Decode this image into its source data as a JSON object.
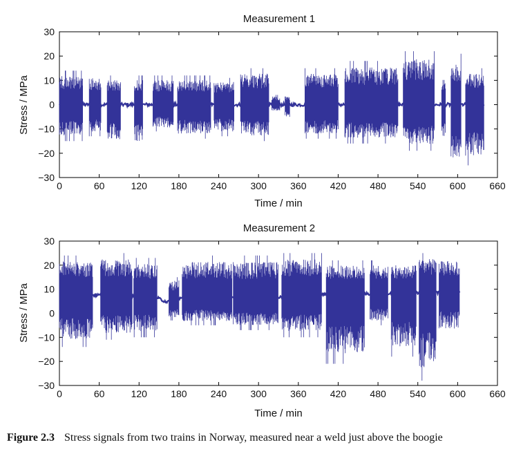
{
  "caption": {
    "label": "Figure 2.3",
    "text": "Stress signals from two trains in Norway, measured near a weld just above the boogie"
  },
  "colors": {
    "signal": "#333399",
    "axes": "#000000"
  },
  "chart_data": [
    {
      "type": "line",
      "title": "Measurement 1",
      "xlabel": "Time / min",
      "ylabel": "Stress / MPa",
      "xlim": [
        0,
        660
      ],
      "ylim": [
        -30,
        30
      ],
      "xticks": [
        0,
        60,
        120,
        180,
        240,
        300,
        360,
        420,
        480,
        540,
        600,
        660
      ],
      "yticks": [
        -30,
        -20,
        -10,
        0,
        10,
        20,
        30
      ],
      "baseline": 0,
      "active_segments": [
        {
          "start": 0,
          "end": 35,
          "min": -15,
          "max": 14
        },
        {
          "start": 45,
          "end": 63,
          "min": -13,
          "max": 13
        },
        {
          "start": 72,
          "end": 92,
          "min": -17,
          "max": 12
        },
        {
          "start": 113,
          "end": 126,
          "min": -18,
          "max": 12
        },
        {
          "start": 141,
          "end": 172,
          "min": -11,
          "max": 12
        },
        {
          "start": 178,
          "end": 228,
          "min": -14,
          "max": 12
        },
        {
          "start": 233,
          "end": 263,
          "min": -13,
          "max": 11
        },
        {
          "start": 273,
          "end": 316,
          "min": -15,
          "max": 15
        },
        {
          "start": 320,
          "end": 332,
          "min": -3,
          "max": 4
        },
        {
          "start": 340,
          "end": 347,
          "min": -6,
          "max": 4
        },
        {
          "start": 370,
          "end": 420,
          "min": -14,
          "max": 15
        },
        {
          "start": 430,
          "end": 510,
          "min": -16,
          "max": 18
        },
        {
          "start": 518,
          "end": 565,
          "min": -19,
          "max": 22
        },
        {
          "start": 576,
          "end": 582,
          "min": -16,
          "max": 12
        },
        {
          "start": 590,
          "end": 605,
          "min": -26,
          "max": 21
        },
        {
          "start": 612,
          "end": 640,
          "min": -25,
          "max": 15
        }
      ]
    },
    {
      "type": "line",
      "title": "Measurement 2",
      "xlabel": "Time / min",
      "ylabel": "Stress / MPa",
      "xlim": [
        0,
        660
      ],
      "ylim": [
        -30,
        30
      ],
      "xticks": [
        0,
        60,
        120,
        180,
        240,
        300,
        360,
        420,
        480,
        540,
        600,
        660
      ],
      "yticks": [
        -30,
        -20,
        -10,
        0,
        10,
        20,
        30
      ],
      "baseline_profile": [
        [
          0,
          8
        ],
        [
          140,
          7
        ],
        [
          160,
          5
        ],
        [
          170,
          4.5
        ],
        [
          180,
          6
        ],
        [
          200,
          7
        ],
        [
          300,
          6
        ],
        [
          400,
          8
        ],
        [
          500,
          8
        ],
        [
          600,
          9
        ]
      ],
      "active_segments": [
        {
          "start": 0,
          "end": 50,
          "min": -14,
          "max": 24
        },
        {
          "start": 62,
          "end": 110,
          "min": -11,
          "max": 25
        },
        {
          "start": 112,
          "end": 147,
          "min": -10,
          "max": 23
        },
        {
          "start": 165,
          "end": 180,
          "min": -3,
          "max": 15
        },
        {
          "start": 185,
          "end": 260,
          "min": -5,
          "max": 24
        },
        {
          "start": 262,
          "end": 330,
          "min": -7,
          "max": 24
        },
        {
          "start": 335,
          "end": 395,
          "min": -10,
          "max": 25
        },
        {
          "start": 402,
          "end": 460,
          "min": -21,
          "max": 22
        },
        {
          "start": 468,
          "end": 495,
          "min": -5,
          "max": 22
        },
        {
          "start": 500,
          "end": 538,
          "min": -18,
          "max": 22
        },
        {
          "start": 542,
          "end": 568,
          "min": -28,
          "max": 25
        },
        {
          "start": 572,
          "end": 603,
          "min": -9,
          "max": 24
        }
      ]
    }
  ]
}
